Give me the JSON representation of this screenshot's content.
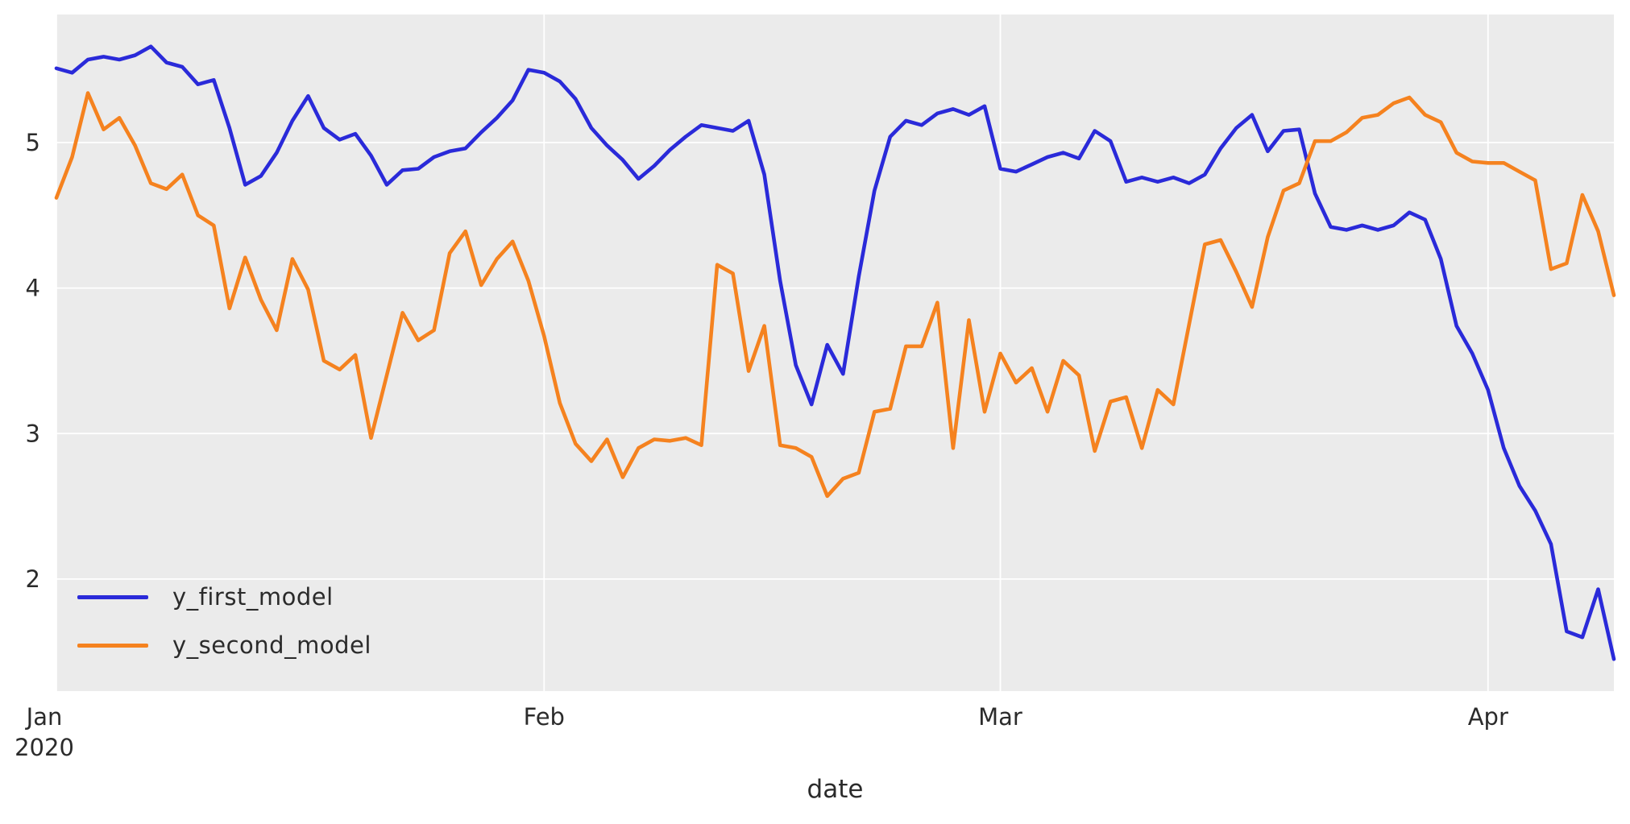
{
  "figure": {
    "background": "#ffffff",
    "plot_background": "#ebebeb",
    "grid_color": "#ffffff",
    "tick_text_color": "#2b2b2b",
    "axis_label": "date"
  },
  "chart_data": {
    "type": "line",
    "title": "",
    "xlabel": "date",
    "ylabel": "",
    "grid": true,
    "legend_position": "lower left",
    "x_axis": {
      "kind": "date",
      "start": "Jan 2020",
      "points": 100,
      "tick_days": [
        0,
        31,
        60,
        91
      ],
      "tick_labels": [
        "Jan",
        "Feb",
        "Mar",
        "Apr"
      ],
      "year_label": "2020",
      "year_under_tick": 0
    },
    "y_axis": {
      "ticks": [
        2,
        3,
        4,
        5
      ],
      "ylim": [
        1.23,
        5.88
      ]
    },
    "series": [
      {
        "name": "y_first_model",
        "color": "#2a2ad9",
        "values": [
          5.51,
          5.48,
          5.57,
          5.59,
          5.57,
          5.6,
          5.66,
          5.55,
          5.52,
          5.4,
          5.43,
          5.1,
          4.71,
          4.77,
          4.93,
          5.15,
          5.32,
          5.1,
          5.02,
          5.06,
          4.91,
          4.71,
          4.81,
          4.82,
          4.9,
          4.94,
          4.96,
          5.07,
          5.17,
          5.29,
          5.5,
          5.48,
          5.42,
          5.3,
          5.1,
          4.98,
          4.88,
          4.75,
          4.84,
          4.95,
          5.04,
          5.12,
          5.1,
          5.08,
          5.15,
          4.78,
          4.05,
          3.47,
          3.2,
          3.61,
          3.41,
          4.08,
          4.67,
          5.04,
          5.15,
          5.12,
          5.2,
          5.23,
          5.19,
          5.25,
          4.82,
          4.8,
          4.85,
          4.9,
          4.93,
          4.89,
          5.08,
          5.01,
          4.73,
          4.76,
          4.73,
          4.76,
          4.72,
          4.78,
          4.96,
          5.1,
          5.19,
          4.94,
          5.08,
          5.09,
          4.65,
          4.42,
          4.4,
          4.43,
          4.4,
          4.43,
          4.52,
          4.47,
          4.2,
          3.74,
          3.55,
          3.3,
          2.9,
          2.64,
          2.47,
          2.24,
          1.64,
          1.6,
          1.93,
          1.45
        ]
      },
      {
        "name": "y_second_model",
        "color": "#f5821f",
        "values": [
          4.62,
          4.9,
          5.34,
          5.09,
          5.17,
          4.98,
          4.72,
          4.68,
          4.78,
          4.5,
          4.43,
          3.86,
          4.21,
          3.92,
          3.71,
          4.2,
          3.99,
          3.5,
          3.44,
          3.54,
          2.97,
          3.4,
          3.83,
          3.64,
          3.71,
          4.24,
          4.39,
          4.02,
          4.2,
          4.32,
          4.05,
          3.67,
          3.21,
          2.93,
          2.81,
          2.96,
          2.7,
          2.9,
          2.96,
          2.95,
          2.97,
          2.92,
          4.16,
          4.1,
          3.43,
          3.74,
          2.92,
          2.9,
          2.84,
          2.57,
          2.69,
          2.73,
          3.15,
          3.17,
          3.6,
          3.6,
          3.9,
          2.9,
          3.78,
          3.15,
          3.55,
          3.35,
          3.45,
          3.15,
          3.5,
          3.4,
          2.88,
          3.22,
          3.25,
          2.9,
          3.3,
          3.2,
          3.75,
          4.3,
          4.33,
          4.11,
          3.87,
          4.35,
          4.67,
          4.72,
          5.01,
          5.01,
          5.07,
          5.17,
          5.19,
          5.27,
          5.31,
          5.19,
          5.14,
          4.93,
          4.87,
          4.86,
          4.86,
          4.8,
          4.74,
          4.13,
          4.17,
          4.64,
          4.39,
          3.95
        ]
      }
    ],
    "legend_entries": [
      "y_first_model",
      "y_second_model"
    ]
  }
}
